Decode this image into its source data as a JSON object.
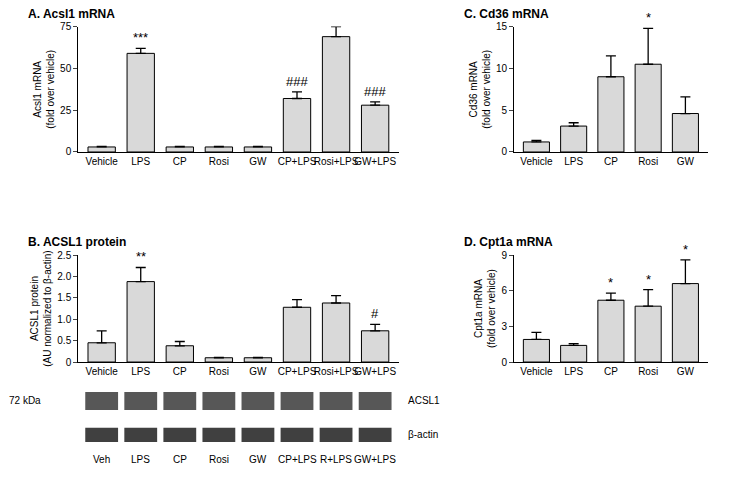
{
  "chart_data": [
    {
      "type": "bar",
      "title": "A. Acsl1 mRNA",
      "ylabel": "Acsl1 mRNA\n(fold over vehicle)",
      "categories": [
        "Vehicle",
        "LPS",
        "CP",
        "Rosi",
        "GW",
        "CP+LPS",
        "Rosi+LPS",
        "GW+LPS"
      ],
      "values": [
        3,
        59,
        3,
        3,
        3,
        32,
        69,
        28
      ],
      "errors": [
        0.3,
        3,
        0.3,
        0.3,
        0.3,
        4,
        6,
        2
      ],
      "color": "#d9d9d9",
      "ylim": [
        0,
        75
      ],
      "yticks": [
        0,
        25,
        50,
        75
      ],
      "grid": false,
      "annotations": [
        {
          "category": "LPS",
          "text": "***"
        },
        {
          "category": "CP+LPS",
          "text": "###"
        },
        {
          "category": "GW+LPS",
          "text": "###"
        }
      ]
    },
    {
      "type": "bar",
      "title": "B. ACSL1 protein",
      "ylabel": "ACSL1 protein\n(AU normalized to β-actin)",
      "categories": [
        "Vehicle",
        "LPS",
        "CP",
        "Rosi",
        "GW",
        "CP+LPS",
        "Rosi+LPS",
        "GW+LPS"
      ],
      "values": [
        0.45,
        1.88,
        0.38,
        0.1,
        0.1,
        1.28,
        1.38,
        0.73
      ],
      "errors": [
        0.28,
        0.33,
        0.1,
        0.01,
        0.01,
        0.18,
        0.17,
        0.15
      ],
      "color": "#d9d9d9",
      "ylim": [
        0,
        2.5
      ],
      "yticks": [
        0,
        0.5,
        {
          "value": 1,
          "label": "1.0"
        },
        1.5,
        {
          "value": 2,
          "label": "2.0"
        },
        2.5
      ],
      "grid": false,
      "annotations": [
        {
          "category": "LPS",
          "text": "**"
        },
        {
          "category": "GW+LPS",
          "text": "#"
        }
      ],
      "blot": {
        "size_label": "72 kDa",
        "rows": [
          "ACSL1",
          "β-actin"
        ],
        "lanes": [
          "Veh",
          "LPS",
          "CP",
          "Rosi",
          "GW",
          "CP+LPS",
          "R+LPS",
          "GW+LPS"
        ]
      }
    },
    {
      "type": "bar",
      "title": "C. Cd36 mRNA",
      "ylabel": "Cd36 mRNA\n(fold over vehicle)",
      "categories": [
        "Vehicle",
        "LPS",
        "CP",
        "Rosi",
        "GW"
      ],
      "values": [
        1.2,
        3.1,
        9.0,
        10.5,
        4.6
      ],
      "errors": [
        0.2,
        0.4,
        2.5,
        4.3,
        2.0
      ],
      "color": "#d9d9d9",
      "ylim": [
        0,
        15
      ],
      "yticks": [
        0,
        5,
        10,
        15
      ],
      "grid": false,
      "annotations": [
        {
          "category": "Rosi",
          "text": "*"
        }
      ]
    },
    {
      "type": "bar",
      "title": "D. Cpt1a mRNA",
      "ylabel": "Cpt1a mRNA\n(fold over vehicle)",
      "categories": [
        "Vehicle",
        "LPS",
        "CP",
        "Rosi",
        "GW"
      ],
      "values": [
        1.9,
        1.4,
        5.2,
        4.7,
        6.6
      ],
      "errors": [
        0.6,
        0.15,
        0.6,
        1.4,
        2.0
      ],
      "color": "#d9d9d9",
      "ylim": [
        0,
        9
      ],
      "yticks": [
        0,
        3,
        6,
        9
      ],
      "grid": false,
      "annotations": [
        {
          "category": "CP",
          "text": "*"
        },
        {
          "category": "Rosi",
          "text": "*"
        },
        {
          "category": "GW",
          "text": "*"
        }
      ]
    }
  ]
}
